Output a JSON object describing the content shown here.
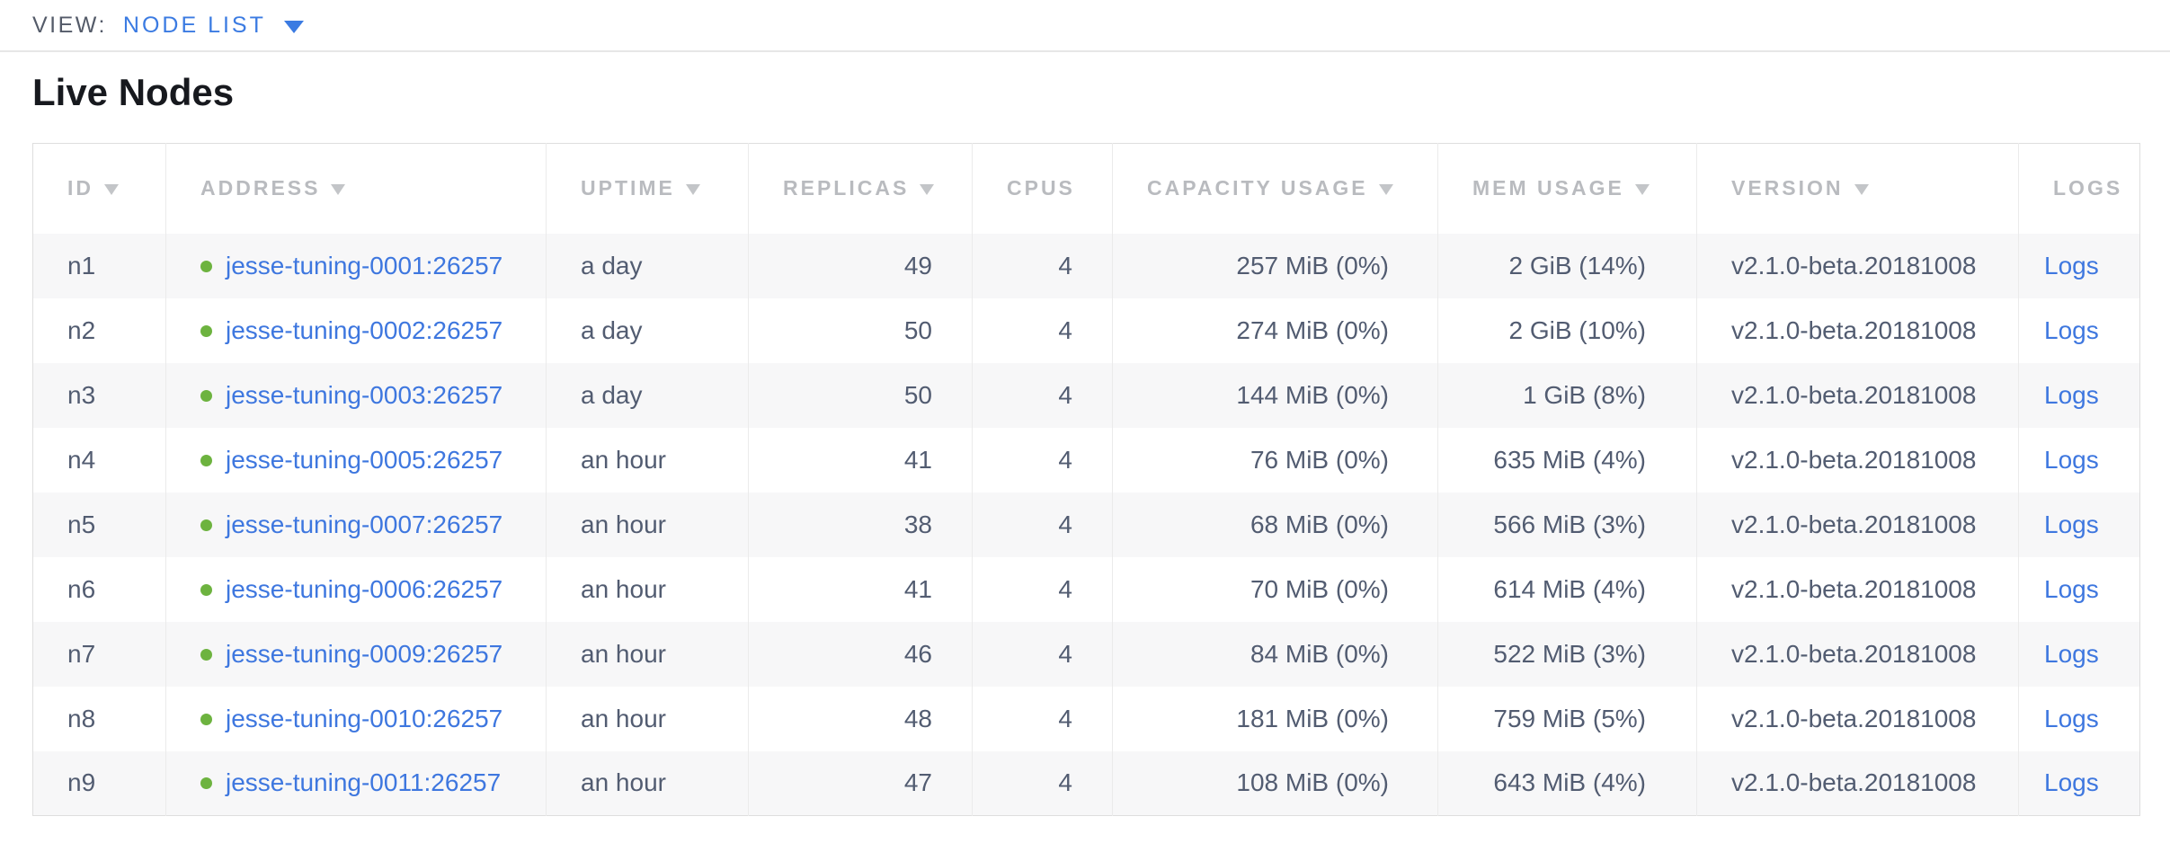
{
  "view_bar": {
    "label": "VIEW:",
    "selected": "NODE LIST"
  },
  "page": {
    "title": "Live Nodes"
  },
  "table": {
    "columns": [
      {
        "key": "id",
        "label": "ID",
        "sortable": true,
        "align": "left"
      },
      {
        "key": "address",
        "label": "ADDRESS",
        "sortable": true,
        "align": "left"
      },
      {
        "key": "uptime",
        "label": "UPTIME",
        "sortable": true,
        "align": "left"
      },
      {
        "key": "replicas",
        "label": "REPLICAS",
        "sortable": true,
        "align": "right"
      },
      {
        "key": "cpus",
        "label": "CPUS",
        "sortable": false,
        "align": "right"
      },
      {
        "key": "capacity",
        "label": "CAPACITY USAGE",
        "sortable": true,
        "align": "right"
      },
      {
        "key": "mem",
        "label": "MEM USAGE",
        "sortable": true,
        "align": "right"
      },
      {
        "key": "version",
        "label": "VERSION",
        "sortable": true,
        "align": "left"
      },
      {
        "key": "logs",
        "label": "LOGS",
        "sortable": false,
        "align": "left"
      }
    ],
    "rows": [
      {
        "id": "n1",
        "status": "healthy",
        "address": "jesse-tuning-0001:26257",
        "uptime": "a day",
        "replicas": "49",
        "cpus": "4",
        "capacity": "257 MiB (0%)",
        "mem": "2 GiB (14%)",
        "version": "v2.1.0-beta.20181008",
        "logs": "Logs"
      },
      {
        "id": "n2",
        "status": "healthy",
        "address": "jesse-tuning-0002:26257",
        "uptime": "a day",
        "replicas": "50",
        "cpus": "4",
        "capacity": "274 MiB (0%)",
        "mem": "2 GiB (10%)",
        "version": "v2.1.0-beta.20181008",
        "logs": "Logs"
      },
      {
        "id": "n3",
        "status": "healthy",
        "address": "jesse-tuning-0003:26257",
        "uptime": "a day",
        "replicas": "50",
        "cpus": "4",
        "capacity": "144 MiB (0%)",
        "mem": "1 GiB (8%)",
        "version": "v2.1.0-beta.20181008",
        "logs": "Logs"
      },
      {
        "id": "n4",
        "status": "healthy",
        "address": "jesse-tuning-0005:26257",
        "uptime": "an hour",
        "replicas": "41",
        "cpus": "4",
        "capacity": "76 MiB (0%)",
        "mem": "635 MiB (4%)",
        "version": "v2.1.0-beta.20181008",
        "logs": "Logs"
      },
      {
        "id": "n5",
        "status": "healthy",
        "address": "jesse-tuning-0007:26257",
        "uptime": "an hour",
        "replicas": "38",
        "cpus": "4",
        "capacity": "68 MiB (0%)",
        "mem": "566 MiB (3%)",
        "version": "v2.1.0-beta.20181008",
        "logs": "Logs"
      },
      {
        "id": "n6",
        "status": "healthy",
        "address": "jesse-tuning-0006:26257",
        "uptime": "an hour",
        "replicas": "41",
        "cpus": "4",
        "capacity": "70 MiB (0%)",
        "mem": "614 MiB (4%)",
        "version": "v2.1.0-beta.20181008",
        "logs": "Logs"
      },
      {
        "id": "n7",
        "status": "healthy",
        "address": "jesse-tuning-0009:26257",
        "uptime": "an hour",
        "replicas": "46",
        "cpus": "4",
        "capacity": "84 MiB (0%)",
        "mem": "522 MiB (3%)",
        "version": "v2.1.0-beta.20181008",
        "logs": "Logs"
      },
      {
        "id": "n8",
        "status": "healthy",
        "address": "jesse-tuning-0010:26257",
        "uptime": "an hour",
        "replicas": "48",
        "cpus": "4",
        "capacity": "181 MiB (0%)",
        "mem": "759 MiB (5%)",
        "version": "v2.1.0-beta.20181008",
        "logs": "Logs"
      },
      {
        "id": "n9",
        "status": "healthy",
        "address": "jesse-tuning-0011:26257",
        "uptime": "an hour",
        "replicas": "47",
        "cpus": "4",
        "capacity": "108 MiB (0%)",
        "mem": "643 MiB (4%)",
        "version": "v2.1.0-beta.20181008",
        "logs": "Logs"
      }
    ]
  },
  "colors": {
    "link": "#3e77df",
    "accent_blue": "#3b7be2",
    "healthy_dot": "#6db33f",
    "header_text": "#b9bbbf",
    "cell_text": "#525c71"
  }
}
